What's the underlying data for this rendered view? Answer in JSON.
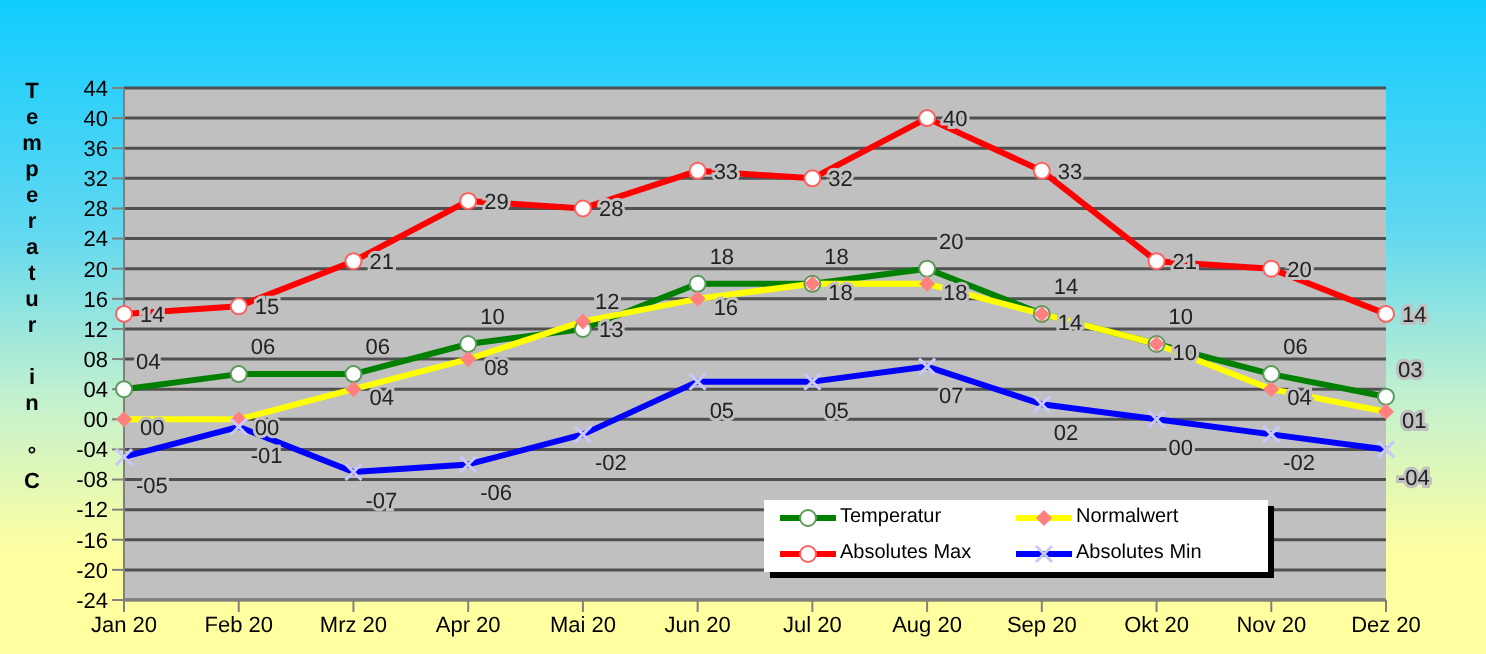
{
  "chart_data": {
    "type": "line",
    "ylabel": "Temperatur in °C",
    "categories": [
      "Jan 20",
      "Feb 20",
      "Mrz 20",
      "Apr 20",
      "Mai 20",
      "Jun 20",
      "Jul 20",
      "Aug 20",
      "Sep 20",
      "Okt 20",
      "Nov 20",
      "Dez 20"
    ],
    "series": [
      {
        "name": "Temperatur",
        "color": "#008000",
        "marker": "circle",
        "values": [
          4,
          6,
          6,
          10,
          12,
          18,
          18,
          20,
          14,
          10,
          6,
          3
        ],
        "value_labels": [
          "04",
          "06",
          "06",
          "10",
          "12",
          "18",
          "18",
          "20",
          "14",
          "10",
          "06",
          "03"
        ]
      },
      {
        "name": "Normalwert",
        "color": "#ffff00",
        "marker": "diamond",
        "values": [
          0,
          0,
          4,
          8,
          13,
          16,
          18,
          18,
          14,
          10,
          4,
          1
        ],
        "value_labels": [
          "00",
          "00",
          "04",
          "08",
          "13",
          "16",
          "18",
          "18",
          "14",
          "10",
          "04",
          "01"
        ]
      },
      {
        "name": "Absolutes Max",
        "color": "#ff0000",
        "marker": "circle",
        "values": [
          14,
          15,
          21,
          29,
          28,
          33,
          32,
          40,
          33,
          21,
          20,
          14
        ],
        "value_labels": [
          "14",
          "15",
          "21",
          "29",
          "28",
          "33",
          "32",
          "40",
          "33",
          "21",
          "20",
          "14"
        ]
      },
      {
        "name": "Absolutes Min",
        "color": "#0000ff",
        "marker": "cross",
        "values": [
          -5,
          -1,
          -7,
          -6,
          -2,
          5,
          5,
          7,
          2,
          0,
          -2,
          -4
        ],
        "value_labels": [
          "-05",
          "-01",
          "-07",
          "-06",
          "-02",
          "05",
          "05",
          "07",
          "02",
          "00",
          "-02",
          "-04"
        ]
      }
    ],
    "ylim": [
      -24,
      44
    ],
    "yticks": [
      -24,
      -20,
      -16,
      -12,
      {
        "value": -8,
        "label": "-08"
      },
      {
        "value": -4,
        "label": "-04"
      },
      {
        "value": 0,
        "label": "00"
      },
      {
        "value": 4,
        "label": "04"
      },
      {
        "value": 8,
        "label": "08"
      },
      12,
      16,
      20,
      24,
      28,
      32,
      36,
      40,
      44
    ],
    "grid": "y",
    "legend": "bottom right"
  }
}
